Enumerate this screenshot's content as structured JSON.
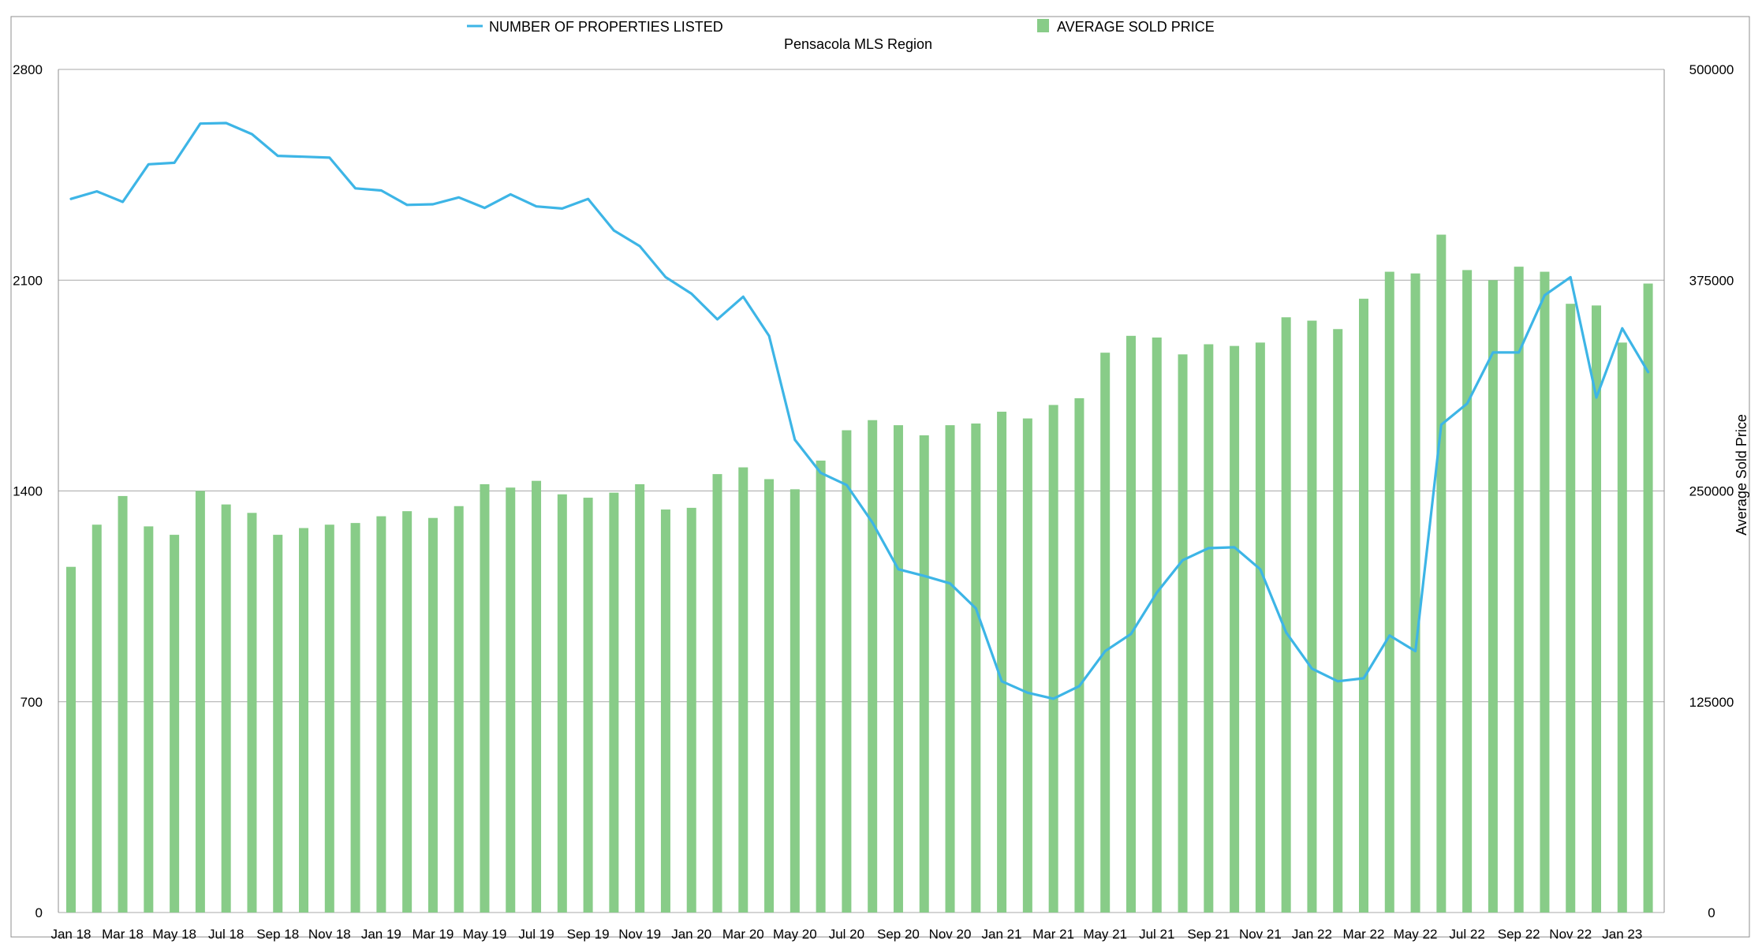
{
  "chart_data": {
    "type": "bar+line",
    "title": "Pensacola MLS Region",
    "legend": {
      "placement": "top",
      "entries": [
        {
          "label": "NUMBER OF PROPERTIES LISTED",
          "kind": "line",
          "color": "#3db5e6"
        },
        {
          "label": "AVERAGE SOLD PRICE",
          "kind": "bar",
          "color": "#88cc88"
        }
      ]
    },
    "y_left": {
      "ticks": [
        "0",
        "700",
        "1400",
        "2100",
        "2800"
      ],
      "range": [
        0,
        2800
      ],
      "label": ""
    },
    "y_right": {
      "ticks": [
        "0",
        "125000",
        "250000",
        "375000",
        "500000"
      ],
      "range": [
        0,
        500000
      ],
      "label": "Average Sold Price"
    },
    "grid": true,
    "x_tick_labels": [
      "Jan 18",
      "Mar 18",
      "May 18",
      "Jul 18",
      "Sep 18",
      "Nov 18",
      "Jan 19",
      "Mar 19",
      "May 19",
      "Jul 19",
      "Sep 19",
      "Nov 19",
      "Jan 20",
      "Mar 20",
      "May 20",
      "Jul 20",
      "Sep 20",
      "Nov 20",
      "Jan 21",
      "Mar 21",
      "May 21",
      "Jul 21",
      "Sep 21",
      "Nov 21",
      "Jan 22",
      "Mar 22",
      "May 22",
      "Jul 22",
      "Sep 22",
      "Nov 22",
      "Jan 23"
    ],
    "months": [
      "Jan 18",
      "Feb 18",
      "Mar 18",
      "Apr 18",
      "May 18",
      "Jun 18",
      "Jul 18",
      "Aug 18",
      "Sep 18",
      "Oct 18",
      "Nov 18",
      "Dec 18",
      "Jan 19",
      "Feb 19",
      "Mar 19",
      "Apr 19",
      "May 19",
      "Jun 19",
      "Jul 19",
      "Aug 19",
      "Sep 19",
      "Oct 19",
      "Nov 19",
      "Dec 19",
      "Jan 20",
      "Feb 20",
      "Mar 20",
      "Apr 20",
      "May 20",
      "Jun 20",
      "Jul 20",
      "Aug 20",
      "Sep 20",
      "Oct 20",
      "Nov 20",
      "Dec 20",
      "Jan 21",
      "Feb 21",
      "Mar 21",
      "Apr 21",
      "May 21",
      "Jun 21",
      "Jul 21",
      "Aug 21",
      "Sep 21",
      "Oct 21",
      "Nov 21",
      "Dec 21",
      "Jan 22",
      "Feb 22",
      "Mar 22",
      "Apr 22",
      "May 22",
      "Jun 22",
      "Jul 22",
      "Aug 22",
      "Sep 22",
      "Oct 22",
      "Nov 22",
      "Dec 22",
      "Jan 23",
      "Feb 23"
    ],
    "series": [
      {
        "name": "AVERAGE SOLD PRICE",
        "type": "bar",
        "axis": "right",
        "values": [
          205000,
          230000,
          247000,
          229000,
          224000,
          250000,
          242000,
          237000,
          224000,
          228000,
          230000,
          231000,
          235000,
          238000,
          234000,
          241000,
          254000,
          252000,
          256000,
          248000,
          246000,
          249000,
          254000,
          239000,
          240000,
          260000,
          264000,
          257000,
          251000,
          268000,
          286000,
          292000,
          289000,
          283000,
          289000,
          290000,
          297000,
          293000,
          301000,
          305000,
          332000,
          342000,
          341000,
          331000,
          337000,
          336000,
          338000,
          353000,
          351000,
          346000,
          364000,
          380000,
          379000,
          402000,
          381000,
          375000,
          383000,
          380000,
          361000,
          360000,
          338000,
          373000
        ]
      },
      {
        "name": "NUMBER OF PROPERTIES LISTED",
        "type": "line",
        "axis": "left",
        "values": [
          2370,
          2395,
          2360,
          2485,
          2490,
          2620,
          2622,
          2585,
          2513,
          2510,
          2507,
          2405,
          2398,
          2350,
          2352,
          2375,
          2340,
          2385,
          2345,
          2338,
          2370,
          2265,
          2213,
          2110,
          2055,
          1970,
          2045,
          1915,
          1570,
          1460,
          1420,
          1295,
          1140,
          1118,
          1093,
          1010,
          768,
          730,
          710,
          752,
          868,
          925,
          1063,
          1170,
          1210,
          1213,
          1140,
          930,
          810,
          768,
          778,
          920,
          868,
          1620,
          1690,
          1860,
          1860,
          2050,
          2110,
          1710,
          1940,
          1795
        ]
      }
    ]
  }
}
